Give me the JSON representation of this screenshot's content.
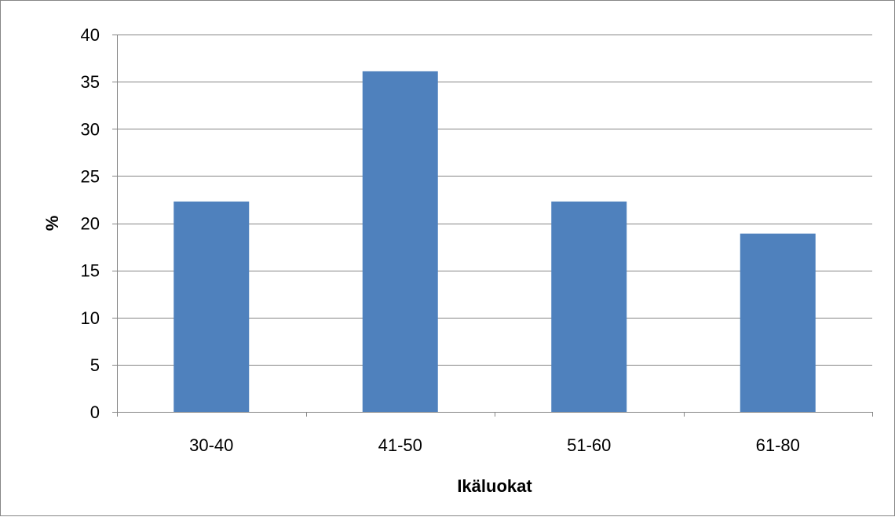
{
  "chart_data": {
    "type": "bar",
    "categories": [
      "30-40",
      "41-50",
      "51-60",
      "61-80"
    ],
    "values": [
      22.3,
      36.1,
      22.3,
      18.9
    ],
    "title": "",
    "xlabel": "Ikäluokat",
    "ylabel": "%",
    "ylim": [
      0,
      40
    ],
    "yticks": [
      0,
      5,
      10,
      15,
      20,
      25,
      30,
      35,
      40
    ],
    "grid": true,
    "legend": "none",
    "bar_color": "#4f81bd",
    "grid_color": "#868686"
  }
}
